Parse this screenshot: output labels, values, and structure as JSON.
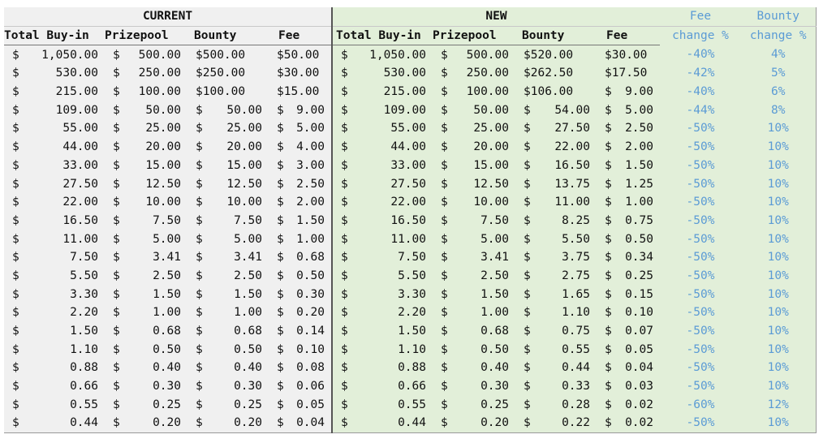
{
  "groups": {
    "current": "CURRENT",
    "new": "NEW"
  },
  "change_headers": {
    "fee": [
      "Fee",
      "change %"
    ],
    "bounty": [
      "Bounty",
      "change %"
    ]
  },
  "columns": [
    "Total Buy-in",
    "Prizepool",
    "Bounty",
    "Fee"
  ],
  "colors": {
    "current_bg": "#f0f0f0",
    "new_bg": "#e2efd9",
    "change_text": "#5b9bd5"
  },
  "rows": [
    {
      "cur": [
        "$ 1,050.00",
        "$ 500.00",
        "$500.00",
        "$50.00"
      ],
      "new": [
        "$ 1,050.00",
        "$ 500.00",
        "$520.00",
        "$30.00"
      ],
      "fee_chg": "-40%",
      "bounty_chg": "4%"
    },
    {
      "cur": [
        "$ 530.00",
        "$ 250.00",
        "$250.00",
        "$30.00"
      ],
      "new": [
        "$ 530.00",
        "$ 250.00",
        "$262.50",
        "$17.50"
      ],
      "fee_chg": "-42%",
      "bounty_chg": "5%"
    },
    {
      "cur": [
        "$ 215.00",
        "$ 100.00",
        "$100.00",
        "$15.00"
      ],
      "new": [
        "$ 215.00",
        "$ 100.00",
        "$106.00",
        "$ 9.00"
      ],
      "fee_chg": "-40%",
      "bounty_chg": "6%"
    },
    {
      "cur": [
        "$ 109.00",
        "$ 50.00",
        "$ 50.00",
        "$ 9.00"
      ],
      "new": [
        "$ 109.00",
        "$ 50.00",
        "$ 54.00",
        "$ 5.00"
      ],
      "fee_chg": "-44%",
      "bounty_chg": "8%"
    },
    {
      "cur": [
        "$ 55.00",
        "$ 25.00",
        "$ 25.00",
        "$ 5.00"
      ],
      "new": [
        "$ 55.00",
        "$ 25.00",
        "$ 27.50",
        "$ 2.50"
      ],
      "fee_chg": "-50%",
      "bounty_chg": "10%"
    },
    {
      "cur": [
        "$ 44.00",
        "$ 20.00",
        "$ 20.00",
        "$ 4.00"
      ],
      "new": [
        "$ 44.00",
        "$ 20.00",
        "$ 22.00",
        "$ 2.00"
      ],
      "fee_chg": "-50%",
      "bounty_chg": "10%"
    },
    {
      "cur": [
        "$ 33.00",
        "$ 15.00",
        "$ 15.00",
        "$ 3.00"
      ],
      "new": [
        "$ 33.00",
        "$ 15.00",
        "$ 16.50",
        "$ 1.50"
      ],
      "fee_chg": "-50%",
      "bounty_chg": "10%"
    },
    {
      "cur": [
        "$ 27.50",
        "$ 12.50",
        "$ 12.50",
        "$ 2.50"
      ],
      "new": [
        "$ 27.50",
        "$ 12.50",
        "$ 13.75",
        "$ 1.25"
      ],
      "fee_chg": "-50%",
      "bounty_chg": "10%"
    },
    {
      "cur": [
        "$ 22.00",
        "$ 10.00",
        "$ 10.00",
        "$ 2.00"
      ],
      "new": [
        "$ 22.00",
        "$ 10.00",
        "$ 11.00",
        "$ 1.00"
      ],
      "fee_chg": "-50%",
      "bounty_chg": "10%"
    },
    {
      "cur": [
        "$ 16.50",
        "$ 7.50",
        "$ 7.50",
        "$ 1.50"
      ],
      "new": [
        "$ 16.50",
        "$ 7.50",
        "$ 8.25",
        "$ 0.75"
      ],
      "fee_chg": "-50%",
      "bounty_chg": "10%"
    },
    {
      "cur": [
        "$ 11.00",
        "$ 5.00",
        "$ 5.00",
        "$ 1.00"
      ],
      "new": [
        "$ 11.00",
        "$ 5.00",
        "$ 5.50",
        "$ 0.50"
      ],
      "fee_chg": "-50%",
      "bounty_chg": "10%"
    },
    {
      "cur": [
        "$ 7.50",
        "$ 3.41",
        "$ 3.41",
        "$ 0.68"
      ],
      "new": [
        "$ 7.50",
        "$ 3.41",
        "$ 3.75",
        "$ 0.34"
      ],
      "fee_chg": "-50%",
      "bounty_chg": "10%"
    },
    {
      "cur": [
        "$ 5.50",
        "$ 2.50",
        "$ 2.50",
        "$ 0.50"
      ],
      "new": [
        "$ 5.50",
        "$ 2.50",
        "$ 2.75",
        "$ 0.25"
      ],
      "fee_chg": "-50%",
      "bounty_chg": "10%"
    },
    {
      "cur": [
        "$ 3.30",
        "$ 1.50",
        "$ 1.50",
        "$ 0.30"
      ],
      "new": [
        "$ 3.30",
        "$ 1.50",
        "$ 1.65",
        "$ 0.15"
      ],
      "fee_chg": "-50%",
      "bounty_chg": "10%"
    },
    {
      "cur": [
        "$ 2.20",
        "$ 1.00",
        "$ 1.00",
        "$ 0.20"
      ],
      "new": [
        "$ 2.20",
        "$ 1.00",
        "$ 1.10",
        "$ 0.10"
      ],
      "fee_chg": "-50%",
      "bounty_chg": "10%"
    },
    {
      "cur": [
        "$ 1.50",
        "$ 0.68",
        "$ 0.68",
        "$ 0.14"
      ],
      "new": [
        "$ 1.50",
        "$ 0.68",
        "$ 0.75",
        "$ 0.07"
      ],
      "fee_chg": "-50%",
      "bounty_chg": "10%"
    },
    {
      "cur": [
        "$ 1.10",
        "$ 0.50",
        "$ 0.50",
        "$ 0.10"
      ],
      "new": [
        "$ 1.10",
        "$ 0.50",
        "$ 0.55",
        "$ 0.05"
      ],
      "fee_chg": "-50%",
      "bounty_chg": "10%"
    },
    {
      "cur": [
        "$ 0.88",
        "$ 0.40",
        "$ 0.40",
        "$ 0.08"
      ],
      "new": [
        "$ 0.88",
        "$ 0.40",
        "$ 0.44",
        "$ 0.04"
      ],
      "fee_chg": "-50%",
      "bounty_chg": "10%"
    },
    {
      "cur": [
        "$ 0.66",
        "$ 0.30",
        "$ 0.30",
        "$ 0.06"
      ],
      "new": [
        "$ 0.66",
        "$ 0.30",
        "$ 0.33",
        "$ 0.03"
      ],
      "fee_chg": "-50%",
      "bounty_chg": "10%"
    },
    {
      "cur": [
        "$ 0.55",
        "$ 0.25",
        "$ 0.25",
        "$ 0.05"
      ],
      "new": [
        "$ 0.55",
        "$ 0.25",
        "$ 0.28",
        "$ 0.02"
      ],
      "fee_chg": "-60%",
      "bounty_chg": "12%"
    },
    {
      "cur": [
        "$ 0.44",
        "$ 0.20",
        "$ 0.20",
        "$ 0.04"
      ],
      "new": [
        "$ 0.44",
        "$ 0.20",
        "$ 0.22",
        "$ 0.02"
      ],
      "fee_chg": "-50%",
      "bounty_chg": "10%"
    }
  ]
}
